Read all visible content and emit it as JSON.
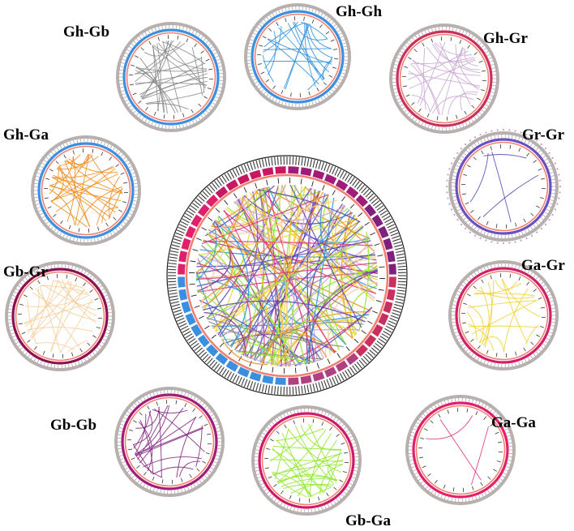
{
  "panels": [
    {
      "label": "Gh-Gh",
      "color": "#2f8fdf",
      "ring": "#3a8fe0",
      "seed": 1,
      "links": 22
    },
    {
      "label": "Gh-Gr",
      "color": "#c9a6d4",
      "ring": "#c8305e",
      "seed": 2,
      "links": 24
    },
    {
      "label": "Gr-Gr",
      "color": "#5a43b5",
      "ring": "#6a4fc0",
      "seed": 3,
      "links": 4
    },
    {
      "label": "Ga-Gr",
      "color": "#f1d02a",
      "ring": "#d0206a",
      "seed": 4,
      "links": 18
    },
    {
      "label": "Ga-Ga",
      "color": "#e0327a",
      "ring": "#e0206a",
      "seed": 5,
      "links": 3
    },
    {
      "label": "Gb-Ga",
      "color": "#8ee62c",
      "ring": "#d0186a",
      "seed": 6,
      "links": 30
    },
    {
      "label": "Gb-Gb",
      "color": "#80207e",
      "ring": "#a01c78",
      "seed": 7,
      "links": 22
    },
    {
      "label": "Gb-Gr",
      "color": "#f6cc98",
      "ring": "#8a1050",
      "seed": 8,
      "links": 24
    },
    {
      "label": "Gh-Ga",
      "color": "#f08a1a",
      "ring": "#3a8fe0",
      "seed": 9,
      "links": 32
    },
    {
      "label": "Gh-Gb",
      "color": "#8a8a8a",
      "ring": "#3a8fe0",
      "seed": 10,
      "links": 30
    }
  ],
  "center": {
    "colors": [
      "#2f8fdf",
      "#c9a6d4",
      "#5a43b5",
      "#f1d02a",
      "#8ee62c",
      "#80207e",
      "#f6cc98",
      "#f08a1a",
      "#8a8a8a",
      "#e0327a"
    ],
    "links": 150
  }
}
